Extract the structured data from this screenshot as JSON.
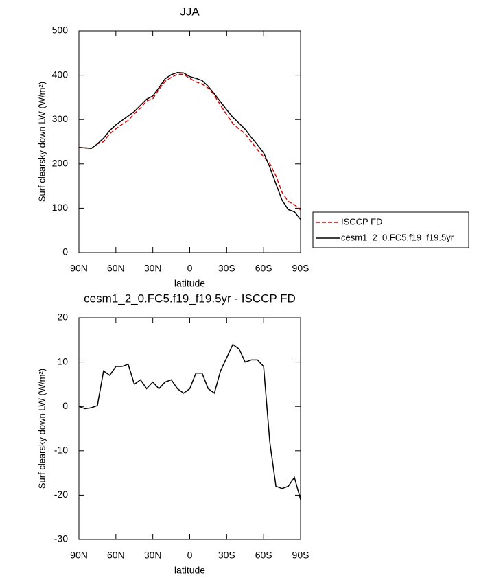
{
  "chart_data": [
    {
      "type": "line",
      "title": "JJA",
      "xlabel": "latitude",
      "ylabel": "Surf clearsky down LW (W/m²)",
      "x": [
        90,
        85,
        80,
        75,
        70,
        65,
        60,
        55,
        50,
        45,
        40,
        35,
        30,
        25,
        20,
        15,
        10,
        5,
        0,
        -5,
        -10,
        -15,
        -20,
        -25,
        -30,
        -35,
        -40,
        -45,
        -50,
        -55,
        -60,
        -65,
        -70,
        -75,
        -80,
        -85,
        -90
      ],
      "series": [
        {
          "name": "ISCCP FD",
          "color": "#e00000",
          "dashed": true,
          "values": [
            237,
            236.5,
            235,
            245,
            250,
            268,
            279,
            289,
            298,
            313,
            326,
            342,
            347,
            368,
            386,
            395,
            402,
            402,
            393,
            385,
            380,
            371,
            355,
            332,
            311,
            291,
            279,
            268,
            250,
            232,
            216,
            201,
            173,
            136,
            115,
            108,
            96
          ]
        },
        {
          "name": "cesm1_2_0.FC5.f19_f19.5yr",
          "color": "#000000",
          "dashed": false,
          "values": [
            237,
            236,
            235,
            245,
            258,
            275,
            288,
            298,
            308,
            318,
            332,
            346,
            353,
            372,
            392,
            401,
            406,
            405,
            397,
            393,
            388,
            375,
            358,
            340,
            322,
            305,
            292,
            278,
            260,
            243,
            225,
            193,
            155,
            118,
            97,
            92,
            75
          ]
        }
      ],
      "xlim": [
        90,
        -90
      ],
      "xticks": [
        {
          "value": 90,
          "label": "90N"
        },
        {
          "value": 60,
          "label": "60N"
        },
        {
          "value": 30,
          "label": "30N"
        },
        0,
        {
          "value": -30,
          "label": "30S"
        },
        {
          "value": -60,
          "label": "60S"
        },
        {
          "value": -90,
          "label": "90S"
        }
      ],
      "ylim": [
        0,
        500
      ],
      "yticks": [
        0,
        100,
        200,
        300,
        400,
        500
      ],
      "legend": "right"
    },
    {
      "type": "line",
      "title": "cesm1_2_0.FC5.f19_f19.5yr - ISCCP FD",
      "xlabel": "latitude",
      "ylabel": "Surf clearsky down LW (W/m²)",
      "x": [
        90,
        85,
        80,
        75,
        70,
        65,
        60,
        55,
        50,
        45,
        40,
        35,
        30,
        25,
        20,
        15,
        10,
        5,
        0,
        -5,
        -10,
        -15,
        -20,
        -25,
        -30,
        -35,
        -40,
        -45,
        -50,
        -55,
        -60,
        -65,
        -70,
        -75,
        -80,
        -85,
        -90
      ],
      "series": [
        {
          "color": "#000000",
          "dashed": false,
          "values": [
            0,
            -0.5,
            -0.3,
            0.2,
            8,
            7,
            9,
            9,
            9.5,
            5,
            6,
            4,
            5.5,
            4,
            5.5,
            6,
            4,
            3,
            4,
            7.5,
            7.5,
            4,
            3,
            8,
            11,
            14,
            13,
            10,
            10.5,
            10.5,
            9,
            -8,
            -18,
            -18.5,
            -18,
            -16,
            -21
          ]
        }
      ],
      "xlim": [
        90,
        -90
      ],
      "xticks": [
        {
          "value": 90,
          "label": "90N"
        },
        {
          "value": 60,
          "label": "60N"
        },
        {
          "value": 30,
          "label": "30N"
        },
        0,
        {
          "value": -30,
          "label": "30S"
        },
        {
          "value": -60,
          "label": "60S"
        },
        {
          "value": -90,
          "label": "90S"
        }
      ],
      "ylim": [
        -30,
        20
      ],
      "yticks": [
        -30,
        -20,
        -10,
        0,
        10,
        20
      ]
    }
  ]
}
